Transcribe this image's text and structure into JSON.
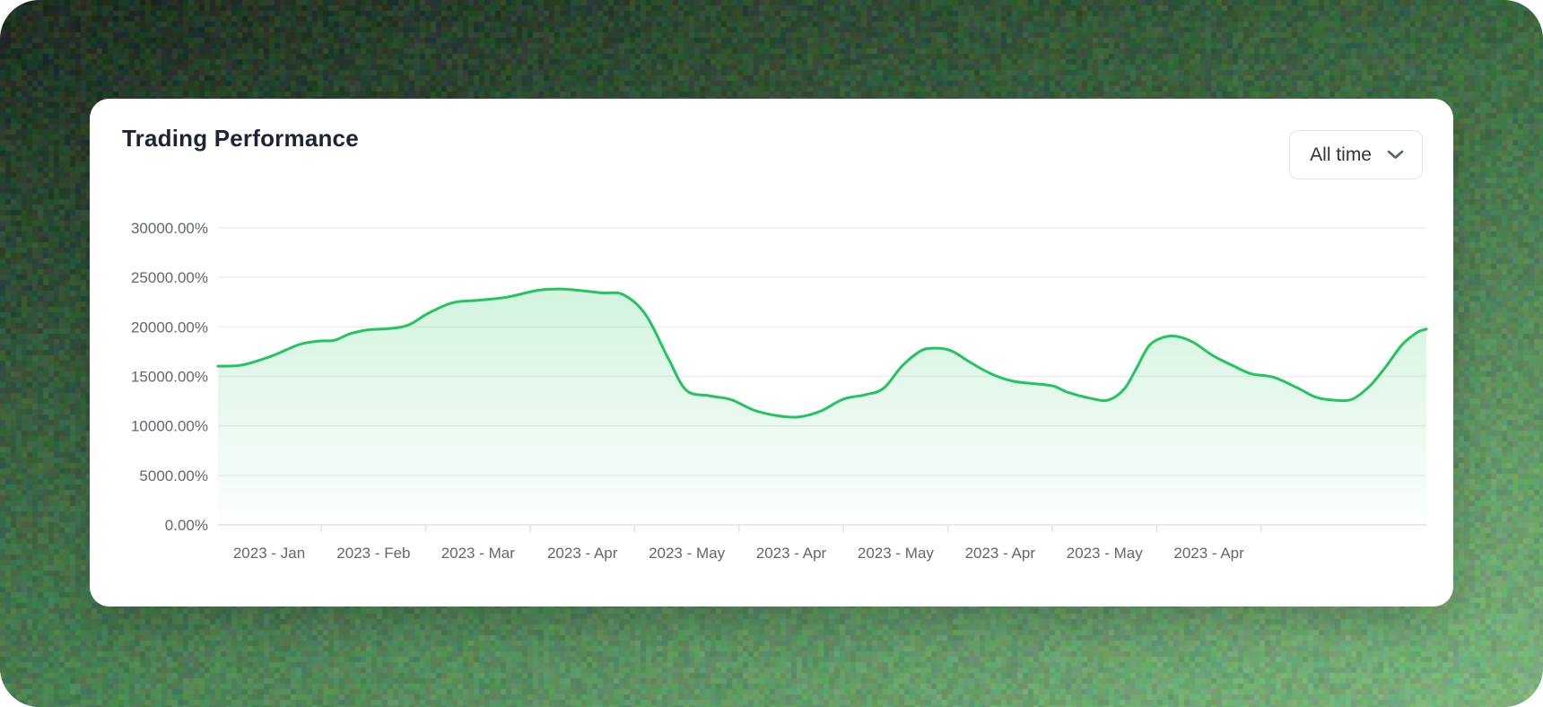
{
  "background": {
    "corner_colors": {
      "tl": "#1d2c20",
      "tr": "#3a6640",
      "bl": "#4a7f52",
      "br": "#7cb67e"
    },
    "noise_jitter": 15,
    "cell_size": 6
  },
  "card": {
    "title": "Trading Performance",
    "range_selector": {
      "value": "All time",
      "icon": "chevron-down-icon"
    }
  },
  "chart_data": {
    "type": "area",
    "title": "Trading Performance",
    "unit": "%",
    "grid": true,
    "legend": false,
    "y_min": 0,
    "y_max": 30000,
    "y_ticks": [
      "30000.00%",
      "25000.00%",
      "20000.00%",
      "15000.00%",
      "10000.00%",
      "5000.00%",
      "0.00%"
    ],
    "x_labels": [
      "2023 - Jan",
      "2023 - Feb",
      "2023 - Mar",
      "2023 - Apr",
      "2023 - May",
      "2023 - Apr",
      "2023 - May",
      "2023 - Apr",
      "2023 - May",
      "2023 - Apr"
    ],
    "line_color": "#22c55e",
    "area_top_color": "rgba(34,197,94,0.20)",
    "area_bottom_color": "rgba(34,197,94,0.01)",
    "grid_color": "#efefef",
    "axis_color": "#e3e3e3",
    "label_color": "#616870",
    "series": [
      {
        "name": "Trading performance (%)",
        "points": [
          [
            0,
            16030
          ],
          [
            27,
            16150
          ],
          [
            60,
            17060
          ],
          [
            90,
            18200
          ],
          [
            112,
            18560
          ],
          [
            130,
            18650
          ],
          [
            147,
            19300
          ],
          [
            167,
            19700
          ],
          [
            187,
            19800
          ],
          [
            202,
            19950
          ],
          [
            215,
            20300
          ],
          [
            235,
            21400
          ],
          [
            262,
            22450
          ],
          [
            292,
            22700
          ],
          [
            322,
            23000
          ],
          [
            357,
            23700
          ],
          [
            382,
            23830
          ],
          [
            407,
            23650
          ],
          [
            429,
            23430
          ],
          [
            452,
            23250
          ],
          [
            477,
            21200
          ],
          [
            502,
            16800
          ],
          [
            522,
            13600
          ],
          [
            547,
            13050
          ],
          [
            572,
            12650
          ],
          [
            597,
            11600
          ],
          [
            622,
            11050
          ],
          [
            647,
            10900
          ],
          [
            672,
            11500
          ],
          [
            697,
            12700
          ],
          [
            722,
            13150
          ],
          [
            742,
            13800
          ],
          [
            762,
            16000
          ],
          [
            782,
            17500
          ],
          [
            797,
            17850
          ],
          [
            817,
            17600
          ],
          [
            837,
            16500
          ],
          [
            862,
            15250
          ],
          [
            887,
            14500
          ],
          [
            917,
            14200
          ],
          [
            932,
            14000
          ],
          [
            947,
            13400
          ],
          [
            972,
            12800
          ],
          [
            992,
            12600
          ],
          [
            1010,
            13700
          ],
          [
            1024,
            15850
          ],
          [
            1038,
            18100
          ],
          [
            1054,
            18950
          ],
          [
            1069,
            19030
          ],
          [
            1087,
            18450
          ],
          [
            1109,
            17100
          ],
          [
            1132,
            16050
          ],
          [
            1152,
            15250
          ],
          [
            1177,
            14900
          ],
          [
            1204,
            13800
          ],
          [
            1224,
            12900
          ],
          [
            1244,
            12600
          ],
          [
            1264,
            12680
          ],
          [
            1284,
            14040
          ],
          [
            1302,
            16000
          ],
          [
            1320,
            18200
          ],
          [
            1337,
            19450
          ],
          [
            1347,
            19780
          ]
        ]
      }
    ]
  }
}
